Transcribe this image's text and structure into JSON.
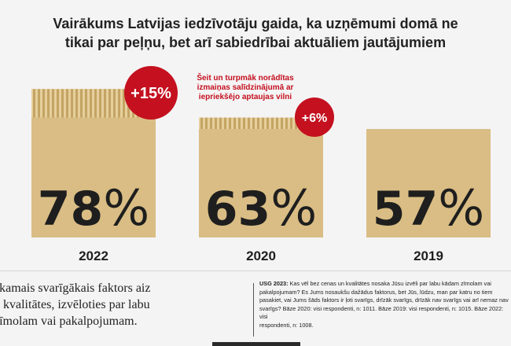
{
  "title": {
    "line1": "Vairākums Latvijas iedzīvotāju gaida, ka uzņēmumi domā ne",
    "line2": "tikai par peļņu, bet arī sabiedrībai aktuāliem jautājumiem"
  },
  "note": {
    "line1": "Šeit un turpmāk norādītas",
    "line2": "izmaiņas salīdzinājumā ar",
    "line3": "iepriekšējo aptaujas vilni"
  },
  "chart_data": {
    "type": "bar",
    "categories": [
      "2022",
      "2020",
      "2019"
    ],
    "values": [
      78,
      63,
      57
    ],
    "value_labels": [
      "78%",
      "63%",
      "57%"
    ],
    "changes": [
      "+15%",
      "+6%",
      null
    ],
    "previous_values": [
      63,
      57,
      null
    ],
    "ylim": [
      0,
      100
    ],
    "colors": {
      "bar": "#d9bd84",
      "bar_border": "#c9ab6d",
      "stripe": "#c4a464",
      "badge": "#c4101f",
      "text": "#1e1e1e"
    }
  },
  "footer": {
    "left": {
      "line1": "akamais svarīgākais faktors aiz",
      "line2": "n kvalitātes, izvēloties par labu",
      "line3": "zīmolam vai pakalpojumam."
    },
    "right": {
      "label": "USG 2023:",
      "line1": "Kas vēl bez cenas un kvalitātes nosaka Jūsu izvēli par labu kādam zīmolam vai",
      "line2": "pakalpojumam? Es Jums nosaukšu dažādus faktorus, bet Jūs, lūdzu, man par katru no tiem",
      "line3": "pasakiet, vai Jums šāds faktors ir ļoti svarīgs, drīzāk svarīgs, drīzāk nav svarīgs vai arī nemaz nav",
      "line4": "svarīgs? Bāze 2020: visi respondenti, n: 1011. Bāze 2019: visi respondenti, n: 1015. Bāze 2022: visi",
      "line5": "respondenti, n: 1008."
    }
  }
}
